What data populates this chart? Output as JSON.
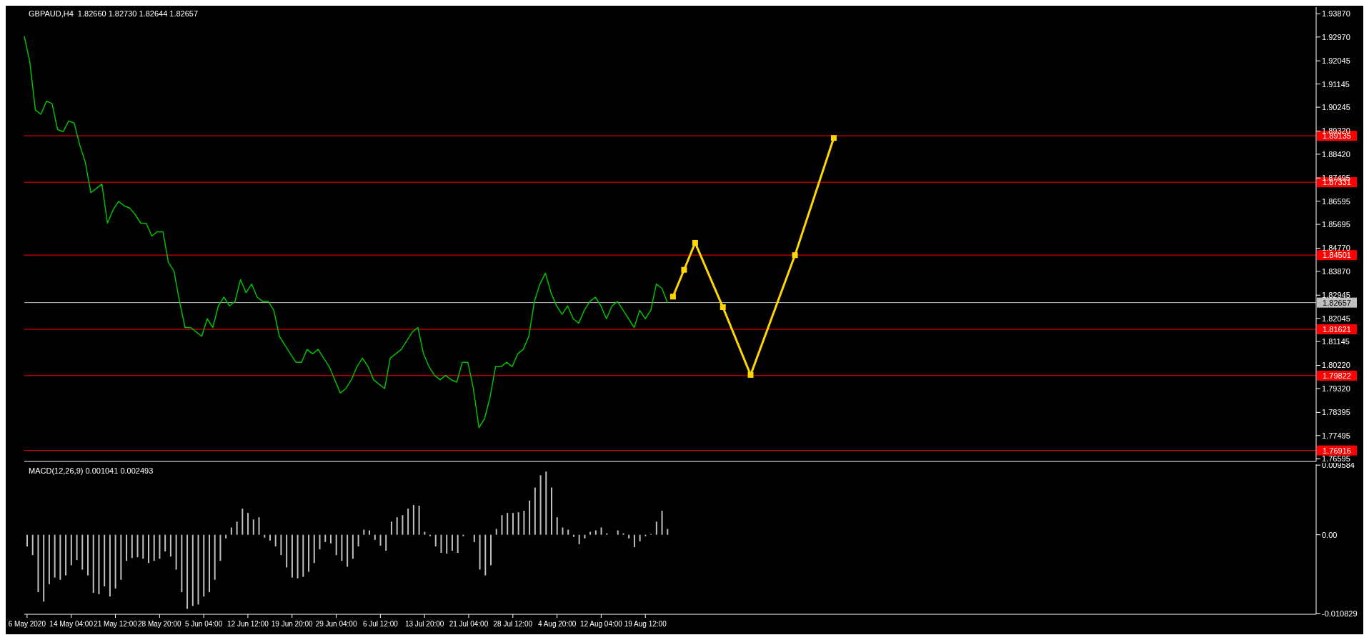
{
  "chart_data": [
    {
      "type": "line",
      "title": "GBPAUD,H4  1.82660 1.82730 1.82644 1.82657",
      "tick_labels": "y",
      "categories": [
        null,
        null,
        null,
        null,
        null,
        null,
        null,
        null,
        null,
        null,
        null,
        null,
        null,
        null,
        null,
        null,
        null,
        null,
        null,
        null,
        null,
        null,
        null,
        null,
        null,
        null,
        null,
        null,
        null,
        null,
        null,
        null,
        null,
        null,
        null,
        null,
        null,
        null,
        null,
        null,
        null,
        null,
        null,
        null,
        null,
        null,
        null,
        null,
        null,
        null,
        null,
        null,
        null,
        null,
        null,
        null,
        null,
        null,
        null,
        null,
        null,
        null,
        null,
        null,
        null,
        null,
        null,
        null,
        null,
        null,
        null,
        null,
        null,
        null,
        null,
        null,
        null,
        null,
        null,
        null,
        null,
        null,
        null,
        null,
        null,
        null,
        null,
        null,
        null,
        null,
        null,
        null,
        null,
        null,
        null,
        null,
        null,
        null,
        null,
        null,
        null,
        null,
        null,
        null,
        null,
        null,
        null,
        null,
        null,
        null,
        null,
        null,
        null,
        null,
        null,
        null,
        null,
        null,
        null,
        null,
        null,
        null,
        null,
        null,
        null,
        null,
        null,
        null,
        null,
        null,
        null,
        null,
        null,
        null,
        null,
        null,
        null,
        null,
        null,
        null,
        null,
        null,
        null,
        null,
        null,
        null,
        null,
        null,
        null,
        null,
        null,
        null,
        null,
        null,
        null,
        null,
        null,
        null,
        null,
        null,
        null,
        null,
        null,
        null,
        null,
        null,
        null,
        null,
        null,
        null,
        null,
        null,
        null,
        null,
        null,
        null,
        null,
        null,
        null,
        null,
        null,
        null,
        null,
        null,
        null,
        null,
        null,
        null,
        null,
        null,
        null,
        null,
        null,
        null,
        null,
        null,
        null,
        null,
        null,
        null,
        null,
        null,
        null,
        null,
        null,
        null,
        null,
        null,
        null,
        null,
        null,
        null,
        null,
        null,
        null,
        null,
        null,
        null,
        null,
        null,
        null,
        null,
        null,
        null,
        null,
        null,
        null,
        null,
        null,
        null,
        null,
        null,
        null,
        null
      ],
      "ylim": [
        1.7649,
        1.9413
      ],
      "yticks": [
        {
          "value": 1.9387,
          "label": "1.93870"
        },
        {
          "value": 1.9297,
          "label": "1.92970"
        },
        {
          "value": 1.92045,
          "label": "1.92045"
        },
        {
          "value": 1.91145,
          "label": "1.91145"
        },
        {
          "value": 1.90245,
          "label": "1.90245"
        },
        {
          "value": 1.8932,
          "label": "1.89320"
        },
        {
          "value": 1.8842,
          "label": "1.88420"
        },
        {
          "value": 1.87495,
          "label": "1.87495"
        },
        {
          "value": 1.86595,
          "label": "1.86595"
        },
        {
          "value": 1.85695,
          "label": "1.85695"
        },
        {
          "value": 1.8477,
          "label": "1.84770"
        },
        {
          "value": 1.8387,
          "label": "1.83870"
        },
        {
          "value": 1.82945,
          "label": "1.82945"
        },
        {
          "value": 1.82045,
          "label": "1.82045"
        },
        {
          "value": 1.81145,
          "label": "1.81145"
        },
        {
          "value": 1.8022,
          "label": "1.80220"
        },
        {
          "value": 1.7932,
          "label": "1.79320"
        },
        {
          "value": 1.78395,
          "label": "1.78395"
        },
        {
          "value": 1.77495,
          "label": "1.77495"
        },
        {
          "value": 1.76595,
          "label": "1.76595"
        }
      ],
      "ref_lines": [
        {
          "axis": "y",
          "value": 1.89135,
          "label": "1.89135",
          "color": "#ff0000"
        },
        {
          "axis": "y",
          "value": 1.87331,
          "label": "1.87331",
          "color": "#ff0000"
        },
        {
          "axis": "y",
          "value": 1.84501,
          "label": "1.84501",
          "color": "#ff0000"
        },
        {
          "axis": "y",
          "value": 1.82657,
          "label": "1.82657",
          "color": "#c0c0c0"
        },
        {
          "axis": "y",
          "value": 1.81621,
          "label": "1.81621",
          "color": "#ff0000"
        },
        {
          "axis": "y",
          "value": 1.79822,
          "label": "1.79822",
          "color": "#ff0000"
        },
        {
          "axis": "y",
          "value": 1.76916,
          "label": "1.76916",
          "color": "#ff0000"
        }
      ],
      "series": [
        {
          "color": "#00c000",
          "marker": "none",
          "values": [
            1.93,
            1.92,
            1.9014,
            1.8997,
            1.9048,
            1.9039,
            1.8938,
            1.8929,
            1.8971,
            1.8963,
            1.8878,
            1.8811,
            1.8693,
            1.8709,
            1.8726,
            1.8574,
            1.8625,
            1.8659,
            1.8642,
            1.8633,
            1.8608,
            1.8574,
            1.8574,
            1.8524,
            1.8541,
            1.8541,
            1.8422,
            1.8388,
            1.827,
            1.8169,
            1.8169,
            1.8152,
            1.8135,
            1.8203,
            1.8169,
            1.8253,
            1.8287,
            1.8253,
            1.827,
            1.8355,
            1.8304,
            1.8338,
            1.8287,
            1.827,
            1.827,
            1.8236,
            1.8135,
            1.8101,
            1.8067,
            1.8034,
            1.8034,
            1.8084,
            1.8067,
            1.8084,
            1.805,
            1.8017,
            1.7966,
            1.7915,
            1.7932,
            1.7966,
            1.8017,
            1.805,
            1.8017,
            1.7966,
            1.7949,
            1.7932,
            1.805,
            1.8067,
            1.8084,
            1.8118,
            1.8152,
            1.8169,
            1.8067,
            1.8017,
            1.7983,
            1.7966,
            1.7983,
            1.7966,
            1.7957,
            1.8034,
            1.8034,
            1.7932,
            1.778,
            1.7814,
            1.7898,
            1.8017,
            1.8017,
            1.8034,
            1.8017,
            1.8067,
            1.8084,
            1.8135,
            1.827,
            1.8338,
            1.838,
            1.8304,
            1.8253,
            1.822,
            1.8253,
            1.8203,
            1.8186,
            1.8236,
            1.827,
            1.8287,
            1.8253,
            1.8203,
            1.8253,
            1.827,
            1.8236,
            1.8203,
            1.8169,
            1.8236,
            1.8203,
            1.8236,
            1.8338,
            1.8321,
            1.8266,
            null,
            null,
            null,
            null,
            null,
            null,
            null,
            null,
            null,
            null,
            null,
            null,
            null,
            null,
            null,
            null,
            null,
            null,
            null,
            null,
            null,
            null,
            null,
            null,
            null,
            null,
            null,
            null,
            null,
            null,
            null,
            null,
            null,
            null,
            null,
            null,
            null,
            null,
            null,
            null,
            null,
            null,
            null,
            null,
            null,
            null,
            null,
            null,
            null,
            null,
            null,
            null,
            null,
            null,
            null,
            null,
            null,
            null,
            null,
            null,
            null,
            null,
            null,
            null,
            null,
            null,
            null,
            null,
            null,
            null,
            null,
            null,
            null,
            null,
            null,
            null,
            null,
            null,
            null,
            null,
            null,
            null,
            null,
            null,
            null,
            null,
            null,
            null,
            null,
            null,
            null,
            null,
            null,
            null,
            null,
            null,
            null,
            null,
            null,
            null,
            null,
            null,
            null,
            null,
            null,
            null,
            null,
            null,
            null,
            null,
            null,
            null,
            null,
            null,
            null,
            null,
            null
          ]
        },
        {
          "color": "#ffd700",
          "marker": "square",
          "values": [
            null,
            null,
            null,
            null,
            null,
            null,
            null,
            null,
            null,
            null,
            null,
            null,
            null,
            null,
            null,
            null,
            null,
            null,
            null,
            null,
            null,
            null,
            null,
            null,
            null,
            null,
            null,
            null,
            null,
            null,
            null,
            null,
            null,
            null,
            null,
            null,
            null,
            null,
            null,
            null,
            null,
            null,
            null,
            null,
            null,
            null,
            null,
            null,
            null,
            null,
            null,
            null,
            null,
            null,
            null,
            null,
            null,
            null,
            null,
            null,
            null,
            null,
            null,
            null,
            null,
            null,
            null,
            null,
            null,
            null,
            null,
            null,
            null,
            null,
            null,
            null,
            null,
            null,
            null,
            null,
            null,
            null,
            null,
            null,
            null,
            null,
            null,
            null,
            null,
            null,
            null,
            null,
            null,
            null,
            null,
            null,
            null,
            null,
            null,
            null,
            null,
            null,
            null,
            null,
            null,
            null,
            null,
            null,
            null,
            null,
            null,
            null,
            null,
            null,
            null,
            null,
            null,
            1.8289,
            null,
            1.8393,
            null,
            1.8498,
            null,
            null,
            null,
            null,
            1.8248,
            null,
            null,
            null,
            null,
            1.7985,
            null,
            null,
            null,
            null,
            null,
            null,
            null,
            1.845,
            null,
            null,
            null,
            null,
            null,
            null,
            1.8905,
            null,
            null,
            null,
            null,
            null,
            null,
            null,
            null,
            null,
            null,
            null,
            null,
            null,
            null,
            null,
            null,
            null,
            null,
            null,
            null,
            null,
            null,
            null,
            null,
            null,
            null,
            null,
            null,
            null,
            null,
            null,
            null,
            null,
            null,
            null,
            null,
            null,
            null,
            null,
            null,
            null,
            null,
            null,
            null,
            null,
            null,
            null,
            null,
            null,
            null,
            null,
            null,
            null,
            null,
            null,
            null,
            null,
            null,
            null,
            null,
            null,
            null,
            null,
            null,
            null,
            null,
            null,
            null,
            null,
            null,
            null,
            null,
            null,
            null,
            null,
            null,
            null,
            null,
            null,
            null,
            null,
            null,
            null,
            null,
            null,
            null,
            null
          ]
        }
      ]
    },
    {
      "type": "bar",
      "title": "MACD(12,26,9) 0.001041 0.002493",
      "categories": [
        "6 May 2020",
        null,
        null,
        null,
        null,
        null,
        null,
        null,
        "14 May 04:00",
        null,
        null,
        null,
        null,
        null,
        null,
        null,
        "21 May 12:00",
        null,
        null,
        null,
        null,
        null,
        null,
        null,
        "28 May 20:00",
        null,
        null,
        null,
        null,
        null,
        null,
        null,
        "5 Jun 04:00",
        null,
        null,
        null,
        null,
        null,
        null,
        null,
        "12 Jun 12:00",
        null,
        null,
        null,
        null,
        null,
        null,
        null,
        "19 Jun 20:00",
        null,
        null,
        null,
        null,
        null,
        null,
        null,
        "29 Jun 04:00",
        null,
        null,
        null,
        null,
        null,
        null,
        null,
        "6 Jul 12:00",
        null,
        null,
        null,
        null,
        null,
        null,
        null,
        "13 Jul 20:00",
        null,
        null,
        null,
        null,
        null,
        null,
        null,
        "21 Jul 04:00",
        null,
        null,
        null,
        null,
        null,
        null,
        null,
        "28 Jul 12:00",
        null,
        null,
        null,
        null,
        null,
        null,
        null,
        "4 Aug 20:00",
        null,
        null,
        null,
        null,
        null,
        null,
        null,
        "12 Aug 04:00",
        null,
        null,
        null,
        null,
        null,
        null,
        null,
        "19 Aug 12:00",
        null,
        null,
        null,
        null,
        null,
        null,
        null,
        null,
        null,
        null,
        null,
        null,
        null,
        null,
        null,
        null,
        null,
        null,
        null,
        null,
        null,
        null,
        null,
        null,
        null,
        null,
        null,
        null,
        null,
        null,
        null,
        null,
        null,
        null,
        null,
        null,
        null,
        null,
        null,
        null,
        null,
        null,
        null,
        null,
        null,
        null,
        null,
        null,
        null,
        null,
        null,
        null,
        null,
        null,
        null,
        null,
        null,
        null,
        null,
        null,
        null,
        null,
        null,
        null,
        null,
        null,
        null,
        null,
        null,
        null,
        null,
        null,
        null,
        null,
        null,
        null,
        null,
        null,
        null,
        null,
        null,
        null,
        null,
        null,
        null,
        null,
        null,
        null,
        null,
        null,
        null,
        null,
        null,
        null,
        null,
        null,
        null,
        null,
        null,
        null,
        null,
        null,
        null,
        null,
        null,
        null,
        null,
        null,
        null,
        null,
        null,
        null,
        null,
        null,
        null,
        null,
        null,
        null,
        null,
        null,
        null
      ],
      "ylim": [
        -0.01095,
        0.0097
      ],
      "yticks": [
        0.009584,
        {
          "value": 0,
          "label": "0.00"
        },
        -0.010829
      ],
      "color": "#c0c0c0",
      "values": [
        -0.0016,
        -0.0028,
        -0.0079,
        -0.0092,
        -0.0068,
        -0.0059,
        -0.0062,
        -0.0056,
        -0.0042,
        -0.0035,
        -0.0048,
        -0.0056,
        -0.008,
        -0.0082,
        -0.0071,
        -0.0085,
        -0.0074,
        -0.0062,
        -0.0036,
        -0.0032,
        -0.0031,
        -0.0033,
        -0.0039,
        -0.0036,
        -0.0033,
        -0.0023,
        -0.003,
        -0.0048,
        -0.0079,
        -0.0102,
        -0.0098,
        -0.0096,
        -0.0085,
        -0.0079,
        -0.0062,
        -0.0036,
        -0.0005,
        0.001,
        0.0018,
        0.0036,
        0.003,
        0.0021,
        0.0024,
        -0.0004,
        -0.0008,
        -0.0016,
        -0.0028,
        -0.0045,
        -0.0059,
        -0.006,
        -0.0058,
        -0.0051,
        -0.0039,
        -0.002,
        -0.001,
        -0.0012,
        -0.0028,
        -0.0036,
        -0.0044,
        -0.0033,
        -0.0016,
        0.0007,
        0.0006,
        -0.0007,
        -0.0015,
        -0.0022,
        0.0018,
        0.0024,
        0.0027,
        0.0036,
        0.0041,
        0.004,
        0.0004,
        -0.0002,
        -0.0016,
        -0.0025,
        -0.0026,
        -0.0022,
        -0.0025,
        -0.0002,
        0,
        -0.001,
        -0.0048,
        -0.0056,
        -0.0042,
        0.0008,
        0.0027,
        0.003,
        0.003,
        0.0031,
        0.0033,
        0.0047,
        0.0065,
        0.0082,
        0.0087,
        0.0065,
        0.0024,
        0.001,
        0.0007,
        -0.0003,
        -0.0013,
        -0.0005,
        0.0004,
        0.0006,
        0.001,
        0.0002,
        0,
        0.0006,
        0.0002,
        -0.0005,
        -0.0017,
        -0.0009,
        -0.0002,
        0.0001,
        0.0018,
        0.0033,
        0.0008,
        null,
        null,
        null,
        null,
        null,
        null,
        null,
        null,
        null,
        null,
        null,
        null,
        null,
        null,
        null,
        null,
        null,
        null,
        null,
        null,
        null,
        null,
        null,
        null,
        null,
        null,
        null,
        null,
        null,
        null,
        null,
        null,
        null,
        null,
        null,
        null,
        null,
        null,
        null,
        null,
        null,
        null,
        null,
        null,
        null,
        null,
        null,
        null,
        null,
        null,
        null,
        null,
        null,
        null,
        null,
        null,
        null,
        null,
        null,
        null,
        null,
        null,
        null,
        null,
        null,
        null,
        null,
        null,
        null,
        null,
        null,
        null,
        null,
        null,
        null,
        null,
        null,
        null,
        null,
        null,
        null,
        null,
        null,
        null,
        null,
        null,
        null,
        null,
        null,
        null,
        null,
        null,
        null,
        null,
        null,
        null,
        null,
        null,
        null,
        null,
        null,
        null,
        null,
        null,
        null,
        null,
        null,
        null,
        null,
        null,
        null,
        null,
        null,
        null,
        null,
        null,
        null
      ]
    }
  ]
}
